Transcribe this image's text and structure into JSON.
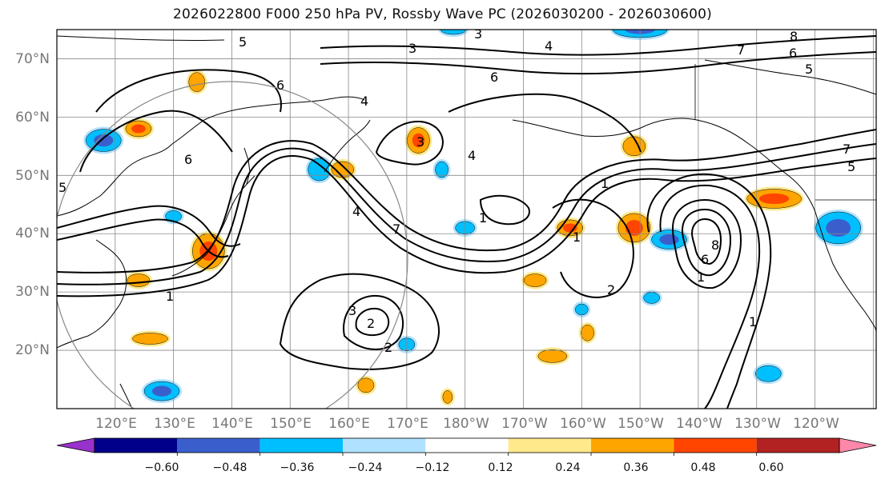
{
  "title": "2026022800 F000 250 hPa PV, Rossby Wave PC (2026030200 - 2026030600)",
  "colors": {
    "grid": "#888888",
    "contour": "#000000",
    "coast": "#000000",
    "circle": "#888888"
  },
  "map": {
    "lat_labels": [
      "70°N",
      "60°N",
      "50°N",
      "40°N",
      "30°N",
      "20°N"
    ],
    "lon_labels": [
      "120°E",
      "130°E",
      "140°E",
      "150°E",
      "160°E",
      "170°E",
      "180°W",
      "170°W",
      "160°W",
      "150°W",
      "140°W",
      "130°W",
      "120°W"
    ],
    "contour_labels": [
      "3",
      "5",
      "4",
      "3",
      "8",
      "7",
      "6",
      "5",
      "6",
      "6",
      "4",
      "3",
      "4",
      "7",
      "5",
      "5",
      "4",
      "1",
      "7",
      "1",
      "6",
      "1",
      "6",
      "1",
      "2",
      "3",
      "2",
      "2",
      "1",
      "8",
      "1"
    ]
  },
  "colorbar": {
    "colors": [
      "#9932cc",
      "#00008b",
      "#3a5fcd",
      "#00bfff",
      "#b0e2ff",
      "#ffffff",
      "#ffe98a",
      "#ffa500",
      "#ff4500",
      "#b22222",
      "#ff88aa"
    ],
    "tick_labels": [
      "−0.60",
      "−0.48",
      "−0.36",
      "−0.24",
      "−0.12",
      "0.12",
      "0.24",
      "0.36",
      "0.48",
      "0.60"
    ]
  },
  "anomalies": [
    {
      "lon": 118,
      "lat": 56,
      "rx": 22,
      "ry": 14,
      "color": "#00bfff",
      "inner": "#3a5fcd"
    },
    {
      "lon": 124,
      "lat": 58,
      "rx": 16,
      "ry": 10,
      "color": "#ffa500",
      "inner": "#ff4500"
    },
    {
      "lon": 134,
      "lat": 66,
      "rx": 10,
      "ry": 12,
      "color": "#ffa500",
      "inner": null
    },
    {
      "lon": 136,
      "lat": 37,
      "rx": 20,
      "ry": 22,
      "color": "#ffa500",
      "inner": "#ff4500"
    },
    {
      "lon": 130,
      "lat": 43,
      "rx": 10,
      "ry": 7,
      "color": "#00bfff",
      "inner": null
    },
    {
      "lon": 124,
      "lat": 32,
      "rx": 14,
      "ry": 8,
      "color": "#ffa500",
      "inner": null
    },
    {
      "lon": 126,
      "lat": 22,
      "rx": 22,
      "ry": 7,
      "color": "#ffa500",
      "inner": null
    },
    {
      "lon": 128,
      "lat": 13,
      "rx": 22,
      "ry": 12,
      "color": "#00bfff",
      "inner": "#3a5fcd"
    },
    {
      "lon": 155,
      "lat": 51,
      "rx": 14,
      "ry": 14,
      "color": "#00bfff",
      "inner": null
    },
    {
      "lon": 159,
      "lat": 51,
      "rx": 14,
      "ry": 10,
      "color": "#ffa500",
      "inner": null
    },
    {
      "lon": 172,
      "lat": 56,
      "rx": 14,
      "ry": 16,
      "color": "#ffa500",
      "inner": "#ff4500"
    },
    {
      "lon": 176,
      "lat": 51,
      "rx": 8,
      "ry": 10,
      "color": "#00bfff",
      "inner": null
    },
    {
      "lon": 180,
      "lat": 41,
      "rx": 12,
      "ry": 8,
      "color": "#00bfff",
      "inner": null
    },
    {
      "lon": 170,
      "lat": 21,
      "rx": 10,
      "ry": 8,
      "color": "#00bfff",
      "inner": null
    },
    {
      "lon": 178,
      "lat": 75,
      "rx": 16,
      "ry": 6,
      "color": "#00bfff",
      "inner": null
    },
    {
      "lon": 198,
      "lat": 41,
      "rx": 16,
      "ry": 10,
      "color": "#ffa500",
      "inner": "#ff4500"
    },
    {
      "lon": 209,
      "lat": 41,
      "rx": 20,
      "ry": 18,
      "color": "#ffa500",
      "inner": "#ff4500"
    },
    {
      "lon": 215,
      "lat": 39,
      "rx": 22,
      "ry": 12,
      "color": "#00bfff",
      "inner": "#3a5fcd"
    },
    {
      "lon": 209,
      "lat": 55,
      "rx": 14,
      "ry": 12,
      "color": "#ffa500",
      "inner": null
    },
    {
      "lon": 192,
      "lat": 32,
      "rx": 14,
      "ry": 8,
      "color": "#ffa500",
      "inner": null
    },
    {
      "lon": 195,
      "lat": 19,
      "rx": 18,
      "ry": 8,
      "color": "#ffa500",
      "inner": null
    },
    {
      "lon": 201,
      "lat": 23,
      "rx": 8,
      "ry": 10,
      "color": "#ffa500",
      "inner": null
    },
    {
      "lon": 210,
      "lat": 75,
      "rx": 34,
      "ry": 10,
      "color": "#00bfff",
      "inner": "#3a5fcd"
    },
    {
      "lon": 233,
      "lat": 46,
      "rx": 34,
      "ry": 12,
      "color": "#ffa500",
      "inner": "#ff4500"
    },
    {
      "lon": 244,
      "lat": 41,
      "rx": 28,
      "ry": 20,
      "color": "#00bfff",
      "inner": "#3a5fcd"
    },
    {
      "lon": 232,
      "lat": 16,
      "rx": 16,
      "ry": 10,
      "color": "#00bfff",
      "inner": null
    },
    {
      "lon": 163,
      "lat": 14,
      "rx": 10,
      "ry": 9,
      "color": "#ffa500",
      "inner": null
    },
    {
      "lon": 177,
      "lat": 12,
      "rx": 6,
      "ry": 8,
      "color": "#ffa500",
      "inner": null
    },
    {
      "lon": 200,
      "lat": 27,
      "rx": 8,
      "ry": 7,
      "color": "#00bfff",
      "inner": null
    },
    {
      "lon": 212,
      "lat": 29,
      "rx": 10,
      "ry": 7,
      "color": "#00bfff",
      "inner": null
    }
  ]
}
